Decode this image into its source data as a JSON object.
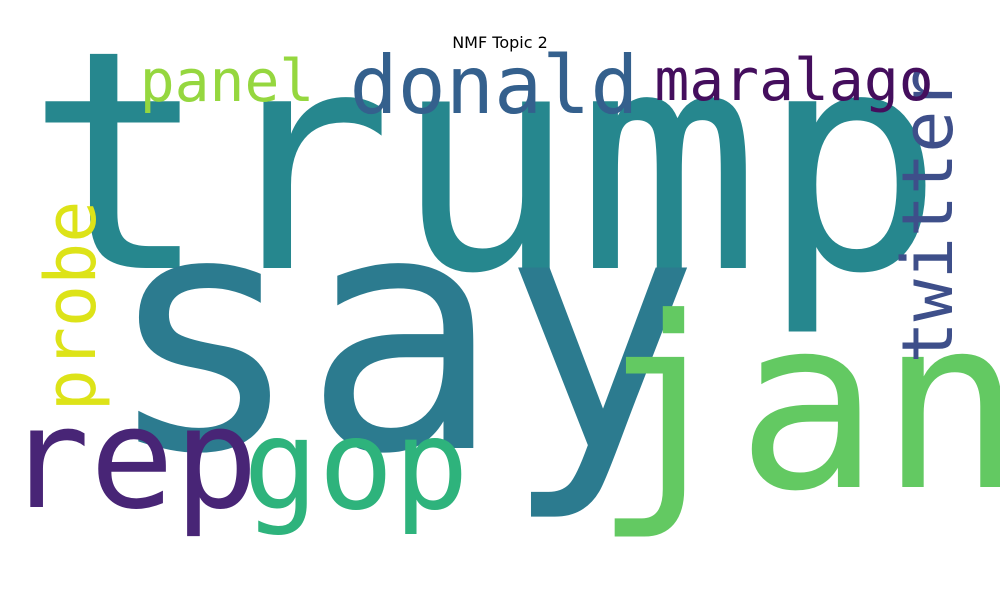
{
  "chart_data": {
    "type": "wordcloud",
    "title": "NMF Topic 2",
    "words": [
      {
        "text": "trump",
        "color": "#26878e"
      },
      {
        "text": "say",
        "color": "#2c7b8f"
      },
      {
        "text": "jan",
        "color": "#63c962"
      },
      {
        "text": "rep",
        "color": "#482576"
      },
      {
        "text": "gop",
        "color": "#2eb37c"
      },
      {
        "text": "donald",
        "color": "#34608d"
      },
      {
        "text": "twitter",
        "color": "#3e4f8a"
      },
      {
        "text": "probe",
        "color": "#dde318"
      },
      {
        "text": "panel",
        "color": "#95d73f"
      },
      {
        "text": "maralago",
        "color": "#440e5d"
      }
    ]
  }
}
